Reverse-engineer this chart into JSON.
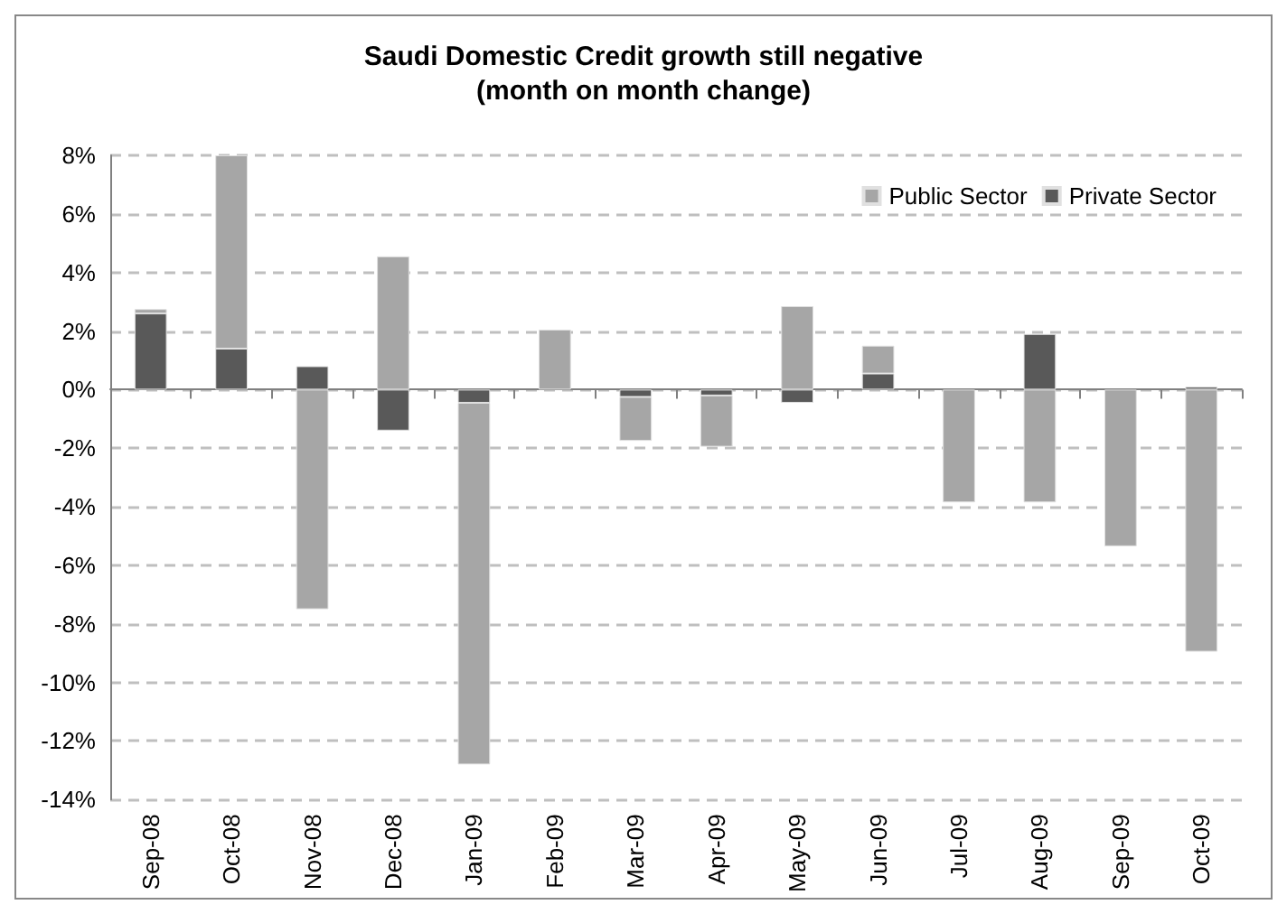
{
  "chart_data": {
    "type": "bar",
    "title": "Saudi Domestic Credit growth still negative\n(month on month change)",
    "stacked": true,
    "categories": [
      "Sep-08",
      "Oct-08",
      "Nov-08",
      "Dec-08",
      "Jan-09",
      "Feb-09",
      "Mar-09",
      "Apr-09",
      "May-09",
      "Jun-09",
      "Jul-09",
      "Aug-09",
      "Sep-09",
      "Oct-09"
    ],
    "series": [
      {
        "name": "Private Sector",
        "color": "#595959",
        "values": [
          2.6,
          1.4,
          0.8,
          -1.4,
          -0.45,
          null,
          -0.25,
          -0.2,
          -0.45,
          0.55,
          null,
          1.9,
          null,
          0.1
        ]
      },
      {
        "name": "Public Sector",
        "color": "#a6a6a6",
        "values": [
          0.15,
          6.6,
          -7.5,
          4.55,
          -12.35,
          2.05,
          -1.5,
          -1.75,
          2.85,
          0.95,
          -3.85,
          -3.85,
          -5.35,
          -8.95
        ]
      }
    ],
    "ylim": [
      -14,
      8
    ],
    "yticks": [
      {
        "value": -14,
        "label": "-14%"
      },
      {
        "value": -12,
        "label": "-12%"
      },
      {
        "value": -10,
        "label": "-10%"
      },
      {
        "value": -8,
        "label": "-8%"
      },
      {
        "value": -6,
        "label": "-6%"
      },
      {
        "value": -4,
        "label": "-4%"
      },
      {
        "value": -2,
        "label": "-2%"
      },
      {
        "value": 0,
        "label": "0%"
      },
      {
        "value": 2,
        "label": "2%"
      },
      {
        "value": 4,
        "label": "4%"
      },
      {
        "value": 6,
        "label": "6%"
      },
      {
        "value": 8,
        "label": "8%"
      }
    ],
    "grid": "y",
    "legend": "top right"
  }
}
